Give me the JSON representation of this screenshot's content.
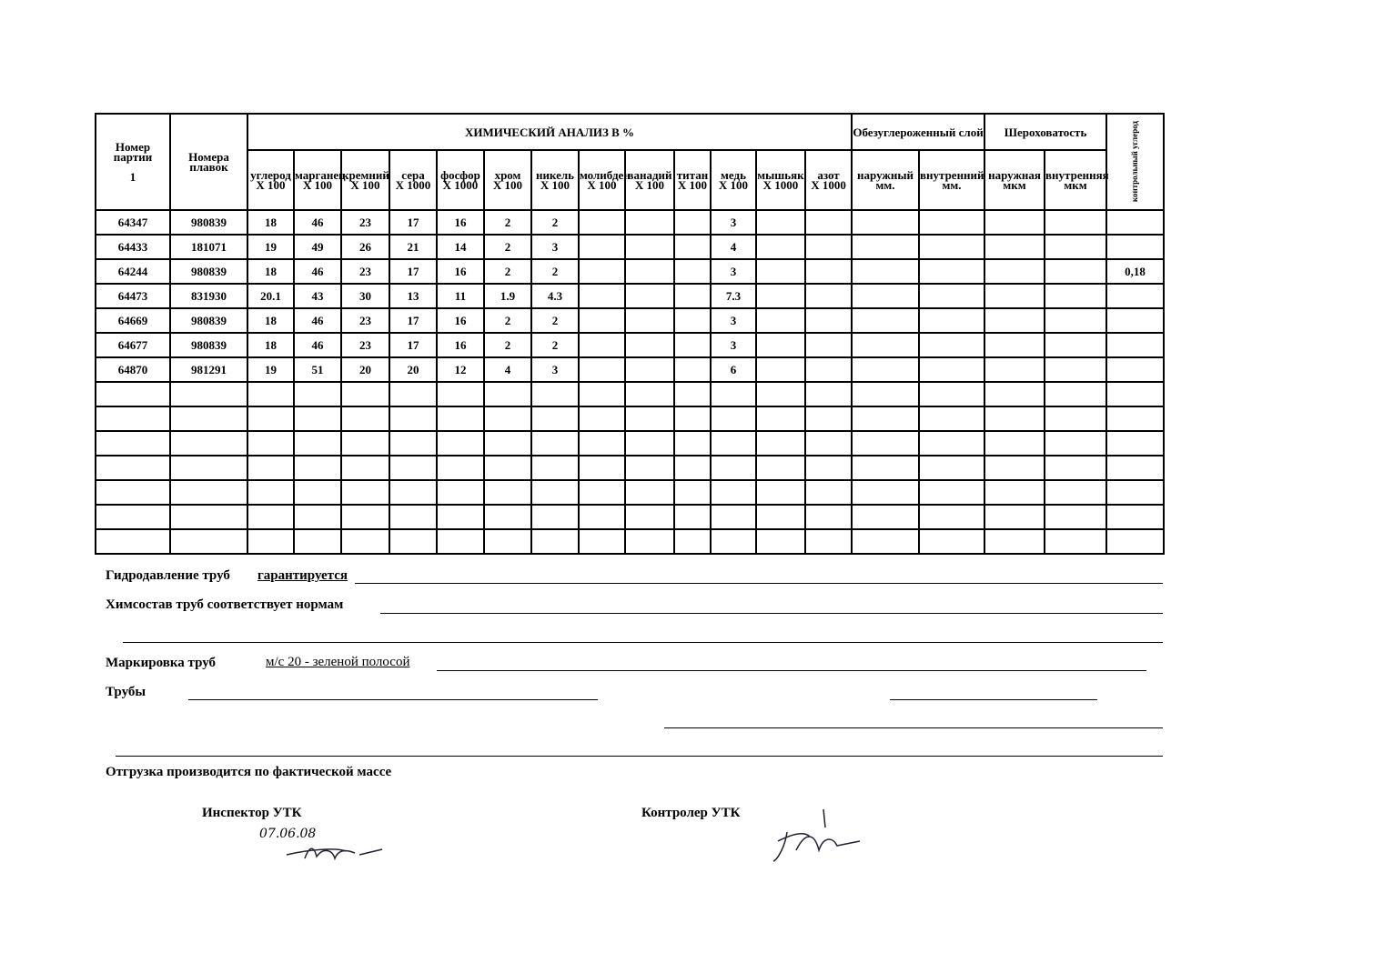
{
  "table": {
    "col_batch": "Номер партии",
    "col_batch_sub": "1",
    "col_heats": "Номера плавок",
    "chem_title": "ХИМИЧЕСКИЙ АНАЛИЗ В %",
    "decarb_title": "Обезуглероженный слой",
    "rough_title": "Шероховатость",
    "control_carbon": "контрольный углерод",
    "subheaders": [
      [
        "углерод",
        "X 100"
      ],
      [
        "марганец",
        "X 100"
      ],
      [
        "кремний",
        "X 100"
      ],
      [
        "сера",
        "X 1000"
      ],
      [
        "фосфор",
        "X 1000"
      ],
      [
        "хром",
        "X 100"
      ],
      [
        "никель",
        "X 100"
      ],
      [
        "молибден",
        "X 100"
      ],
      [
        "ванадий",
        "X 100"
      ],
      [
        "титан",
        "X 100"
      ],
      [
        "медь",
        "X 100"
      ],
      [
        "мышьяк",
        "X 1000"
      ],
      [
        "азот",
        "X 1000"
      ],
      [
        "наружный",
        "мм."
      ],
      [
        "внутренний",
        "мм."
      ],
      [
        "наружная",
        "мкм"
      ],
      [
        "внутренняя",
        "мкм"
      ]
    ],
    "rows": [
      [
        "64347",
        "980839",
        "18",
        "46",
        "23",
        "17",
        "16",
        "2",
        "2",
        "",
        "",
        "",
        "3",
        "",
        "",
        "",
        "",
        "",
        "",
        ""
      ],
      [
        "64433",
        "181071",
        "19",
        "49",
        "26",
        "21",
        "14",
        "2",
        "3",
        "",
        "",
        "",
        "4",
        "",
        "",
        "",
        "",
        "",
        "",
        ""
      ],
      [
        "64244",
        "980839",
        "18",
        "46",
        "23",
        "17",
        "16",
        "2",
        "2",
        "",
        "",
        "",
        "3",
        "",
        "",
        "",
        "",
        "",
        "",
        "0,18"
      ],
      [
        "64473",
        "831930",
        "20.1",
        "43",
        "30",
        "13",
        "11",
        "1.9",
        "4.3",
        "",
        "",
        "",
        "7.3",
        "",
        "",
        "",
        "",
        "",
        "",
        ""
      ],
      [
        "64669",
        "980839",
        "18",
        "46",
        "23",
        "17",
        "16",
        "2",
        "2",
        "",
        "",
        "",
        "3",
        "",
        "",
        "",
        "",
        "",
        "",
        ""
      ],
      [
        "64677",
        "980839",
        "18",
        "46",
        "23",
        "17",
        "16",
        "2",
        "2",
        "",
        "",
        "",
        "3",
        "",
        "",
        "",
        "",
        "",
        "",
        ""
      ],
      [
        "64870",
        "981291",
        "19",
        "51",
        "20",
        "20",
        "12",
        "4",
        "3",
        "",
        "",
        "",
        "6",
        "",
        "",
        "",
        "",
        "",
        "",
        ""
      ]
    ],
    "empty_rows": 7
  },
  "footer": {
    "hydro_label": "Гидродавление труб",
    "hydro_value": "гарантируется",
    "chem_label": "Химсостав труб соответствует нормам",
    "marking_label": "Маркировка труб",
    "marking_value": "м/с 20 - зеленой полосой",
    "pipes_label": "Трубы",
    "shipping": "Отгрузка производится по фактической массе",
    "inspector": "Инспектор УТК",
    "inspector_date": "07.06.08",
    "controller": "Контролер УТК"
  }
}
